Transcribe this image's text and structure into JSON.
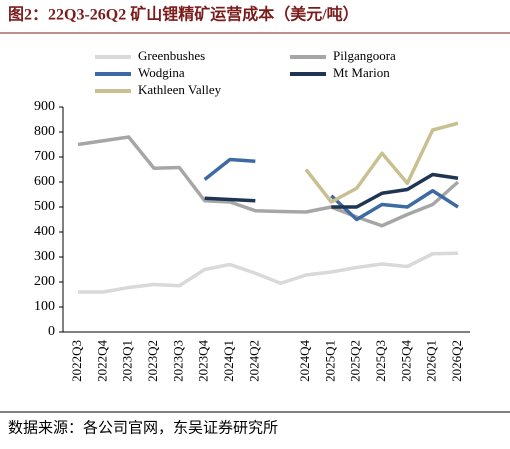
{
  "chart_data": {
    "type": "line",
    "title": "图2：22Q3-26Q2 矿山锂精矿运营成本（美元/吨）",
    "source": "数据来源：各公司官网，东吴证券研究所",
    "categories": [
      "2022Q3",
      "2022Q4",
      "2023Q1",
      "2023Q2",
      "2023Q3",
      "2023Q4",
      "2024Q1",
      "2024Q2",
      null,
      "2024Q4",
      "2025Q1",
      "2025Q2",
      "2025Q3",
      "2025Q4",
      "2026Q1",
      "2026Q2"
    ],
    "ylim": [
      0,
      900
    ],
    "yticks": [
      0,
      100,
      200,
      300,
      400,
      500,
      600,
      700,
      800,
      900
    ],
    "series": [
      {
        "name": "Greenbushes",
        "color": "#d9d9d9",
        "values": [
          160,
          160,
          178,
          190,
          185,
          250,
          270,
          235,
          195,
          228,
          240,
          258,
          272,
          262,
          313,
          315
        ]
      },
      {
        "name": "Pilgangoora",
        "color": "#a6a6a6",
        "values": [
          750,
          765,
          780,
          655,
          658,
          525,
          520,
          485,
          482,
          480,
          500,
          460,
          425,
          470,
          510,
          600
        ]
      },
      {
        "name": "Wodgina",
        "color": "#3e6aa3",
        "values": [
          null,
          null,
          null,
          null,
          null,
          610,
          690,
          683,
          null,
          null,
          545,
          450,
          510,
          500,
          565,
          500
        ]
      },
      {
        "name": "Mt Marion",
        "color": "#1f3553",
        "values": [
          null,
          null,
          null,
          null,
          null,
          535,
          530,
          525,
          null,
          null,
          500,
          500,
          555,
          570,
          630,
          615
        ]
      },
      {
        "name": "Kathleen Valley",
        "color": "#c9bf91",
        "values": [
          null,
          null,
          null,
          null,
          null,
          null,
          null,
          null,
          null,
          650,
          520,
          575,
          715,
          595,
          808,
          835
        ]
      }
    ]
  }
}
